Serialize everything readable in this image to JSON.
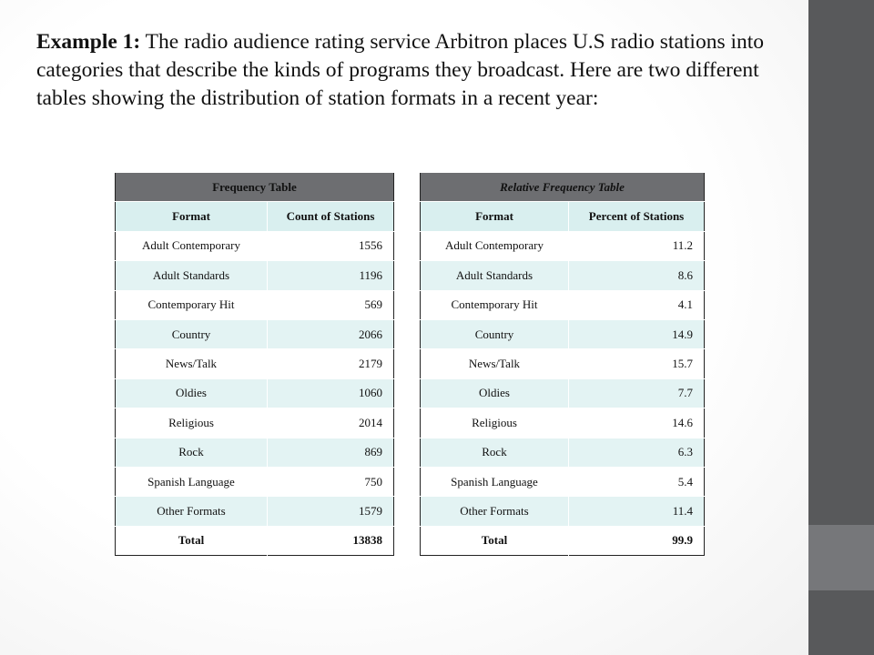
{
  "slide": {
    "heading_lead": "Example 1:",
    "heading_text": " The radio audience rating service Arbitron places U.S radio stations into categories that describe the kinds of programs they broadcast. Here are two different tables showing the distribution of station formats in a recent year:"
  },
  "frequency_table": {
    "title": "Frequency Table",
    "headers": [
      "Format",
      "Count of Stations"
    ],
    "rows": [
      {
        "format": "Adult Contemporary",
        "value": "1556"
      },
      {
        "format": "Adult Standards",
        "value": "1196"
      },
      {
        "format": "Contemporary Hit",
        "value": "569"
      },
      {
        "format": "Country",
        "value": "2066"
      },
      {
        "format": "News/Talk",
        "value": "2179"
      },
      {
        "format": "Oldies",
        "value": "1060"
      },
      {
        "format": "Religious",
        "value": "2014"
      },
      {
        "format": "Rock",
        "value": "869"
      },
      {
        "format": "Spanish Language",
        "value": "750"
      },
      {
        "format": "Other Formats",
        "value": "1579"
      }
    ],
    "total": {
      "label": "Total",
      "value": "13838"
    }
  },
  "relative_table": {
    "title": "Relative Frequency Table",
    "headers": [
      "Format",
      "Percent of Stations"
    ],
    "rows": [
      {
        "format": "Adult Contemporary",
        "value": "11.2"
      },
      {
        "format": "Adult Standards",
        "value": "8.6"
      },
      {
        "format": "Contemporary Hit",
        "value": "4.1"
      },
      {
        "format": "Country",
        "value": "14.9"
      },
      {
        "format": "News/Talk",
        "value": "15.7"
      },
      {
        "format": "Oldies",
        "value": "7.7"
      },
      {
        "format": "Religious",
        "value": "14.6"
      },
      {
        "format": "Rock",
        "value": "6.3"
      },
      {
        "format": "Spanish Language",
        "value": "5.4"
      },
      {
        "format": "Other Formats",
        "value": "11.4"
      }
    ],
    "total": {
      "label": "Total",
      "value": "99.9"
    }
  },
  "colors": {
    "sidebar": "#58595b",
    "sidebar_accent": "#76777a",
    "table_title_bg": "#6d6e71",
    "table_band": "#e3f3f3"
  }
}
